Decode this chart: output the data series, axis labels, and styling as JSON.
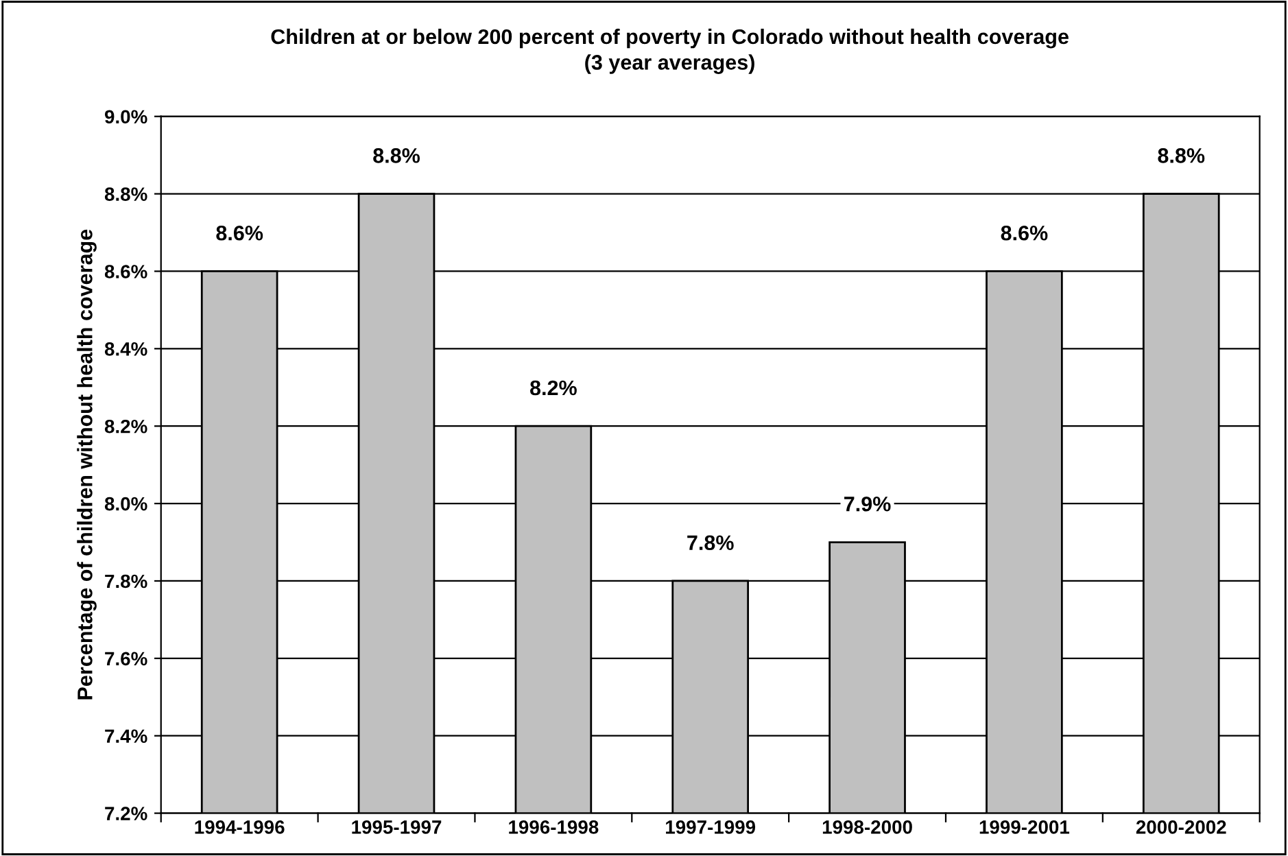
{
  "chart_data": {
    "type": "bar",
    "title": "Children at or below 200 percent of poverty in Colorado without health coverage",
    "subtitle": "(3 year averages)",
    "ylabel": "Percentage of children without health coverage",
    "categories": [
      "1994-1996",
      "1995-1997",
      "1996-1998",
      "1997-1999",
      "1998-2000",
      "1999-2001",
      "2000-2002"
    ],
    "values": [
      8.6,
      8.8,
      8.2,
      7.8,
      7.9,
      8.6,
      8.8
    ],
    "value_labels": [
      "8.6%",
      "8.8%",
      "8.2%",
      "7.8%",
      "7.9%",
      "8.6%",
      "8.8%"
    ],
    "color": "#c0c0c0",
    "ylim": [
      7.2,
      9.0
    ],
    "yticks": [
      {
        "value": 7.2,
        "label": "7.2%"
      },
      {
        "value": 7.4,
        "label": "7.4%"
      },
      {
        "value": 7.6,
        "label": "7.6%"
      },
      {
        "value": 7.8,
        "label": "7.8%"
      },
      {
        "value": 8.0,
        "label": "8.0%"
      },
      {
        "value": 8.2,
        "label": "8.2%"
      },
      {
        "value": 8.4,
        "label": "8.4%"
      },
      {
        "value": 8.6,
        "label": "8.6%"
      },
      {
        "value": 8.8,
        "label": "8.8%"
      },
      {
        "value": 9.0,
        "label": "9.0%"
      }
    ],
    "grid": "y",
    "legend": false
  }
}
